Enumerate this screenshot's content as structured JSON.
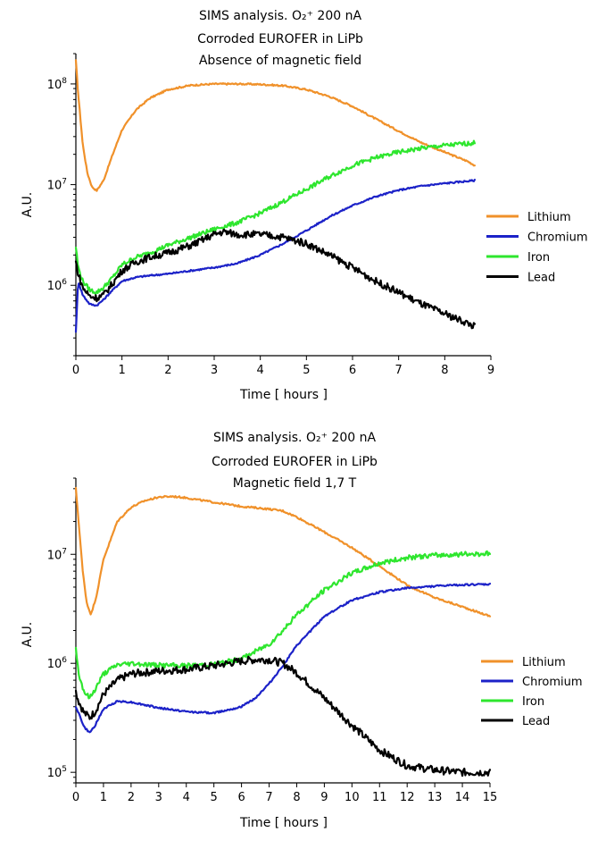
{
  "chart_data": [
    {
      "type": "line",
      "title_lines": [
        "SIMS analysis. O₂⁺ 200 nA",
        "Corroded EUROFER in LiPb",
        "Absence of magnetic field"
      ],
      "xlabel": "Time [ hours ]",
      "ylabel": "A.U.",
      "xlim": [
        0,
        9
      ],
      "xticks": [
        0,
        1,
        2,
        3,
        4,
        5,
        6,
        7,
        8,
        9
      ],
      "yscale": "log",
      "ylim": [
        200000,
        200000000
      ],
      "ytick_labels": [
        {
          "value": 1000000,
          "base": "10",
          "exp": "6"
        },
        {
          "value": 10000000,
          "base": "10",
          "exp": "7"
        },
        {
          "value": 100000000,
          "base": "10",
          "exp": "8"
        }
      ],
      "legend_position": "right",
      "series": [
        {
          "name": "Lithium",
          "color": "#F0912A",
          "x": [
            0,
            0.05,
            0.15,
            0.25,
            0.35,
            0.45,
            0.6,
            0.8,
            1.0,
            1.3,
            1.6,
            2.0,
            2.5,
            3.0,
            3.5,
            4.0,
            4.5,
            5.0,
            5.5,
            6.0,
            6.5,
            7.0,
            7.5,
            8.0,
            8.5,
            8.65
          ],
          "y": [
            170000000,
            80000000,
            25000000,
            13000000,
            9500000,
            8700000,
            11000000,
            20000000,
            35000000,
            55000000,
            72000000,
            88000000,
            97000000,
            100000000,
            100000000,
            99000000,
            96000000,
            88000000,
            75000000,
            60000000,
            45000000,
            34000000,
            26000000,
            21000000,
            17000000,
            15500000
          ]
        },
        {
          "name": "Chromium",
          "color": "#1C22C8",
          "x": [
            0,
            0.05,
            0.15,
            0.3,
            0.45,
            0.6,
            0.8,
            1.0,
            1.3,
            1.6,
            2.0,
            2.5,
            3.0,
            3.5,
            4.0,
            4.5,
            5.0,
            5.5,
            6.0,
            6.5,
            7.0,
            7.5,
            8.0,
            8.65
          ],
          "y": [
            350000,
            1100000,
            800000,
            650000,
            630000,
            720000,
            900000,
            1100000,
            1200000,
            1250000,
            1300000,
            1400000,
            1500000,
            1650000,
            2000000,
            2600000,
            3500000,
            4800000,
            6200000,
            7600000,
            8800000,
            9700000,
            10300000,
            11000000
          ]
        },
        {
          "name": "Iron",
          "color": "#2EE62E",
          "x": [
            0,
            0.05,
            0.15,
            0.3,
            0.45,
            0.6,
            0.8,
            1.0,
            1.3,
            1.6,
            2.0,
            2.5,
            3.0,
            3.5,
            4.0,
            4.5,
            5.0,
            5.5,
            6.0,
            6.5,
            7.0,
            7.5,
            8.0,
            8.65
          ],
          "y": [
            2400000,
            1500000,
            1100000,
            900000,
            850000,
            950000,
            1200000,
            1600000,
            1900000,
            2100000,
            2500000,
            3000000,
            3600000,
            4200000,
            5200000,
            6800000,
            9000000,
            12000000,
            15500000,
            18500000,
            21000000,
            23000000,
            24500000,
            26000000
          ]
        },
        {
          "name": "Lead",
          "color": "#000000",
          "x": [
            0,
            0.05,
            0.15,
            0.3,
            0.45,
            0.6,
            0.8,
            1.0,
            1.3,
            1.6,
            2.0,
            2.5,
            3.0,
            3.2,
            3.5,
            4.0,
            4.5,
            5.0,
            5.5,
            6.0,
            6.5,
            7.0,
            7.5,
            8.0,
            8.5,
            8.65
          ],
          "y": [
            1700000,
            1300000,
            950000,
            780000,
            750000,
            800000,
            1050000,
            1400000,
            1700000,
            1900000,
            2100000,
            2500000,
            3200000,
            3400000,
            3200000,
            3200000,
            3000000,
            2600000,
            2000000,
            1500000,
            1100000,
            850000,
            650000,
            520000,
            420000,
            390000
          ]
        }
      ]
    },
    {
      "type": "line",
      "title_lines": [
        "SIMS analysis. O₂⁺ 200 nA",
        "Corroded EUROFER in LiPb",
        "Magnetic field 1,7 T"
      ],
      "xlabel": "Time [ hours ]",
      "ylabel": "A.U.",
      "xlim": [
        0,
        15
      ],
      "xticks": [
        0,
        1,
        2,
        3,
        4,
        5,
        6,
        7,
        8,
        9,
        10,
        11,
        12,
        13,
        14,
        15
      ],
      "yscale": "log",
      "ylim": [
        80000,
        50000000
      ],
      "ytick_labels": [
        {
          "value": 100000,
          "base": "10",
          "exp": "5"
        },
        {
          "value": 1000000,
          "base": "10",
          "exp": "6"
        },
        {
          "value": 10000000,
          "base": "10",
          "exp": "7"
        }
      ],
      "legend_position": "right",
      "series": [
        {
          "name": "Lithium",
          "color": "#F0912A",
          "x": [
            0,
            0.1,
            0.25,
            0.4,
            0.55,
            0.75,
            1.0,
            1.5,
            2.0,
            2.5,
            3.0,
            3.5,
            4.0,
            5.0,
            6.0,
            7.0,
            7.5,
            8.0,
            9.0,
            10.0,
            11.0,
            12.0,
            13.0,
            14.0,
            15.0
          ],
          "y": [
            40000000,
            20000000,
            7000000,
            3500000,
            2800000,
            4200000,
            9000000,
            20000000,
            27000000,
            31000000,
            33500000,
            34000000,
            33000000,
            30000000,
            27500000,
            26000000,
            25000000,
            22000000,
            16000000,
            11500000,
            7800000,
            5200000,
            4000000,
            3300000,
            2700000
          ]
        },
        {
          "name": "Chromium",
          "color": "#1C22C8",
          "x": [
            0,
            0.1,
            0.3,
            0.5,
            0.7,
            1.0,
            1.5,
            2.0,
            3.0,
            4.0,
            5.0,
            6.0,
            6.5,
            7.0,
            7.5,
            8.0,
            9.0,
            10.0,
            11.0,
            12.0,
            13.0,
            14.0,
            15.0
          ],
          "y": [
            400000,
            350000,
            260000,
            230000,
            270000,
            380000,
            450000,
            440000,
            390000,
            360000,
            350000,
            400000,
            480000,
            650000,
            950000,
            1450000,
            2700000,
            3800000,
            4500000,
            4900000,
            5100000,
            5250000,
            5300000
          ]
        },
        {
          "name": "Iron",
          "color": "#2EE62E",
          "x": [
            0,
            0.1,
            0.3,
            0.5,
            0.7,
            1.0,
            1.5,
            2.0,
            3.0,
            4.0,
            5.0,
            6.0,
            7.0,
            7.5,
            8.0,
            9.0,
            10.0,
            11.0,
            12.0,
            13.0,
            14.0,
            15.0
          ],
          "y": [
            1400000,
            800000,
            550000,
            480000,
            580000,
            800000,
            970000,
            1000000,
            960000,
            950000,
            980000,
            1100000,
            1500000,
            2000000,
            2800000,
            4700000,
            6700000,
            8300000,
            9300000,
            9800000,
            10000000,
            10200000
          ]
        },
        {
          "name": "Lead",
          "color": "#000000",
          "x": [
            0,
            0.1,
            0.3,
            0.5,
            0.7,
            1.0,
            1.5,
            2.0,
            3.0,
            4.0,
            5.0,
            6.0,
            6.5,
            7.0,
            7.5,
            8.0,
            9.0,
            10.0,
            11.0,
            12.0,
            13.0,
            14.0,
            15.0
          ],
          "y": [
            550000,
            450000,
            350000,
            320000,
            360000,
            520000,
            700000,
            800000,
            850000,
            880000,
            950000,
            1050000,
            1080000,
            1080000,
            1000000,
            820000,
            480000,
            270000,
            160000,
            115000,
            105000,
            100000,
            100000
          ]
        }
      ]
    }
  ]
}
